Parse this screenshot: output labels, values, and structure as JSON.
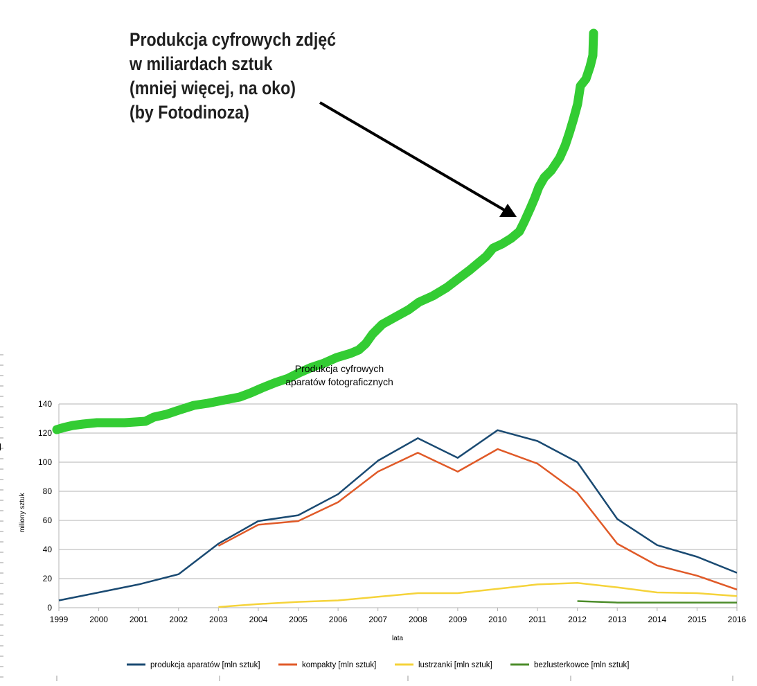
{
  "annotation": {
    "lines": [
      "Produkcja cyfrowych zdjęć",
      "w miliardach sztuk",
      "(mniej więcej, na oko)",
      "(by Fotodinoza)"
    ],
    "curve_color": "#33cc33",
    "arrow_color": "#000000"
  },
  "chart_data": {
    "type": "line",
    "title_lines": [
      "Produkcja cyfrowych",
      "aparatów fotograficznych"
    ],
    "xlabel": "lata",
    "ylabel": "miliony sztuk",
    "x": [
      1999,
      2000,
      2001,
      2002,
      2003,
      2004,
      2005,
      2006,
      2007,
      2008,
      2009,
      2010,
      2011,
      2012,
      2013,
      2014,
      2015,
      2016
    ],
    "ylim": [
      0,
      140
    ],
    "yticks": [
      0,
      20,
      40,
      60,
      80,
      100,
      120,
      140
    ],
    "grid": true,
    "legend_position": "bottom",
    "series": [
      {
        "name": "produkcja aparatów [mln sztuk]",
        "color": "#1a4a72",
        "values": [
          5,
          10.5,
          16,
          23,
          44,
          59.5,
          63.5,
          78,
          101,
          116.5,
          103,
          122,
          114.5,
          100,
          61,
          43,
          35,
          24
        ]
      },
      {
        "name": "kompakty [mln sztuk]",
        "color": "#e05a28",
        "values": [
          null,
          null,
          null,
          null,
          42.5,
          57,
          59.5,
          72.5,
          93.5,
          106.5,
          93.5,
          109,
          99,
          79,
          44,
          29,
          22,
          12.5
        ]
      },
      {
        "name": "lustrzanki [mln sztuk]",
        "color": "#f5d33a",
        "values": [
          null,
          null,
          null,
          null,
          0.5,
          2.5,
          4,
          5,
          7.5,
          10,
          10,
          13,
          16,
          17,
          14,
          10.5,
          10,
          8
        ]
      },
      {
        "name": "bezlusterkowce [mln sztuk]",
        "color": "#4c8c2a",
        "values": [
          null,
          null,
          null,
          null,
          null,
          null,
          null,
          null,
          null,
          null,
          null,
          null,
          null,
          4.5,
          3.5,
          3.5,
          3.5,
          3.5
        ]
      }
    ]
  }
}
